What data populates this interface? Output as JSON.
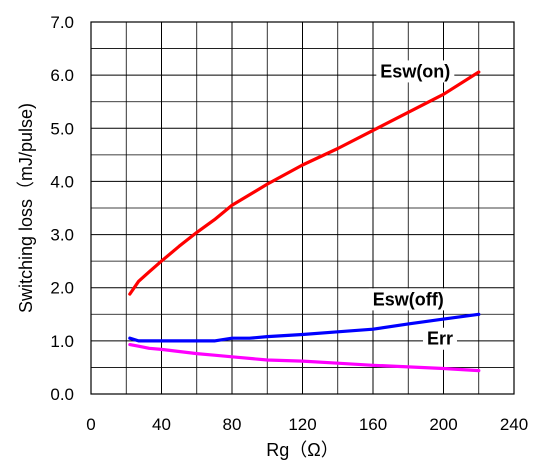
{
  "chart_data": {
    "type": "line",
    "title": "",
    "xlabel": "Rg（Ω）",
    "ylabel": "Switching loss（mJ/pulse)",
    "xlim": [
      0,
      240
    ],
    "ylim": [
      0.0,
      7.0
    ],
    "xticks": [
      0,
      40,
      80,
      120,
      160,
      200,
      240
    ],
    "xtick_labels": [
      "0",
      "40",
      "80",
      "120",
      "160",
      "200",
      "240"
    ],
    "yticks": [
      0.0,
      1.0,
      2.0,
      3.0,
      4.0,
      5.0,
      6.0,
      7.0
    ],
    "ytick_labels": [
      "0.0",
      "1.0",
      "2.0",
      "3.0",
      "4.0",
      "5.0",
      "6.0",
      "7.0"
    ],
    "x_minor_step": 20,
    "y_minor_step": 0.5,
    "grid": true,
    "legend": "none",
    "series": [
      {
        "name": "Esw(on)",
        "color": "#ff0000",
        "x": [
          22,
          27,
          33,
          40,
          50,
          60,
          70,
          80,
          100,
          120,
          140,
          160,
          180,
          200,
          220
        ],
        "y": [
          1.88,
          2.12,
          2.3,
          2.5,
          2.78,
          3.04,
          3.28,
          3.55,
          3.95,
          4.31,
          4.62,
          4.96,
          5.3,
          5.64,
          6.06
        ]
      },
      {
        "name": "Esw(off)",
        "color": "#0000ff",
        "x": [
          22,
          27,
          33,
          40,
          50,
          60,
          70,
          80,
          90,
          100,
          120,
          140,
          160,
          180,
          200,
          220
        ],
        "y": [
          1.05,
          1.0,
          1.0,
          1.0,
          1.0,
          1.0,
          1.0,
          1.05,
          1.05,
          1.08,
          1.12,
          1.17,
          1.22,
          1.32,
          1.41,
          1.5
        ]
      },
      {
        "name": "Err",
        "color": "#ff00ff",
        "x": [
          22,
          27,
          33,
          40,
          50,
          60,
          70,
          80,
          100,
          120,
          140,
          160,
          180,
          200,
          220
        ],
        "y": [
          0.93,
          0.9,
          0.86,
          0.84,
          0.8,
          0.76,
          0.73,
          0.7,
          0.64,
          0.62,
          0.58,
          0.54,
          0.51,
          0.48,
          0.44
        ]
      }
    ],
    "annotations": [
      {
        "text": "Esw(on)",
        "x": 184,
        "y": 6.07
      },
      {
        "text": "Esw(off)",
        "x": 180,
        "y": 1.78
      },
      {
        "text": "Err",
        "x": 198,
        "y": 1.04
      }
    ]
  }
}
